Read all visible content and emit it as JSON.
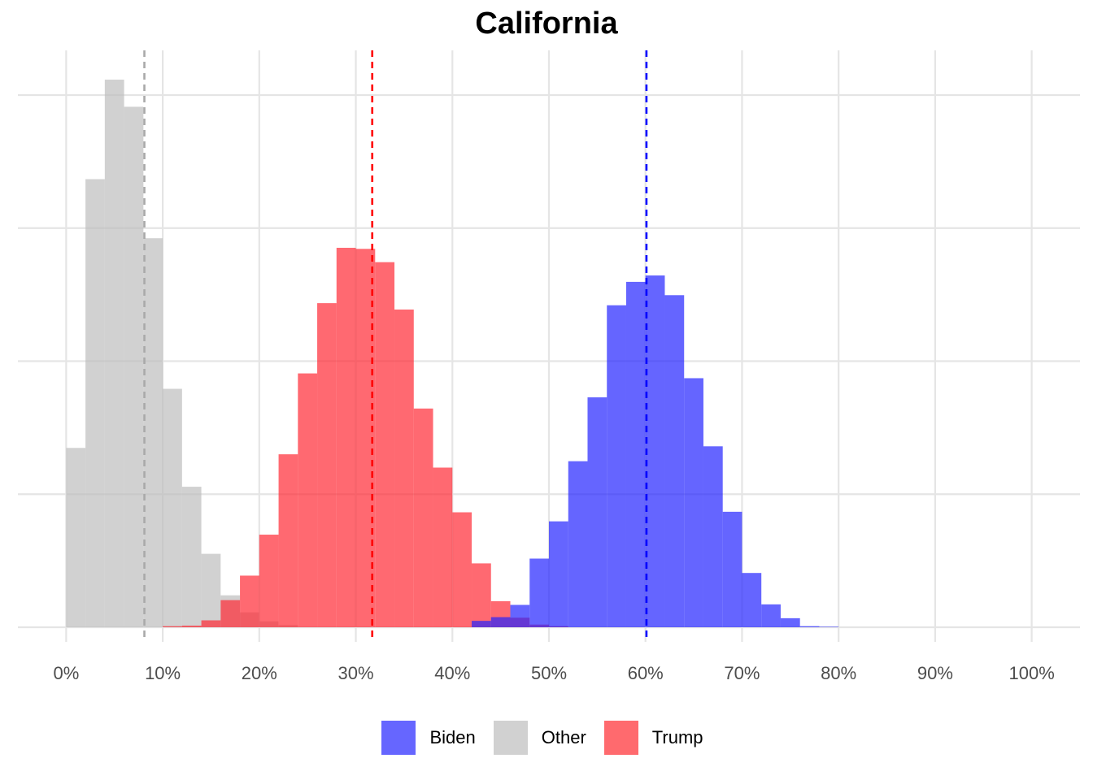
{
  "chart_data": {
    "type": "histogram",
    "title": "California",
    "xlabel": "",
    "ylabel": "",
    "xlim": [
      -0.05,
      1.05
    ],
    "ylim": [
      0,
      1
    ],
    "x_ticks": [
      "0%",
      "10%",
      "20%",
      "30%",
      "40%",
      "50%",
      "60%",
      "70%",
      "80%",
      "90%",
      "100%"
    ],
    "x_tick_values": [
      0,
      0.1,
      0.2,
      0.3,
      0.4,
      0.5,
      0.6,
      0.7,
      0.8,
      0.9,
      1.0
    ],
    "y_gridlines": [
      0,
      0.25,
      0.5,
      0.75,
      1.0
    ],
    "y_tick_labels_shown": false,
    "grid": true,
    "legend_position": "bottom",
    "bin_width": 0.02,
    "series": [
      {
        "name": "Other",
        "color": "#BEBEBE",
        "opacity": 0.7,
        "bins": [
          {
            "x": 0.01,
            "height": 0.337
          },
          {
            "x": 0.03,
            "height": 0.842
          },
          {
            "x": 0.05,
            "height": 1.029
          },
          {
            "x": 0.07,
            "height": 0.978
          },
          {
            "x": 0.09,
            "height": 0.731
          },
          {
            "x": 0.11,
            "height": 0.448
          },
          {
            "x": 0.13,
            "height": 0.264
          },
          {
            "x": 0.15,
            "height": 0.138
          },
          {
            "x": 0.17,
            "height": 0.06
          },
          {
            "x": 0.19,
            "height": 0.028
          },
          {
            "x": 0.21,
            "height": 0.011
          },
          {
            "x": 0.23,
            "height": 0.004
          }
        ],
        "mean": 0.081,
        "mean_line_color": "#A9A9A9"
      },
      {
        "name": "Trump",
        "color": "#FF2A35",
        "opacity": 0.7,
        "bins": [
          {
            "x": 0.11,
            "height": 0.002
          },
          {
            "x": 0.13,
            "height": 0.003
          },
          {
            "x": 0.15,
            "height": 0.013
          },
          {
            "x": 0.17,
            "height": 0.051
          },
          {
            "x": 0.19,
            "height": 0.097
          },
          {
            "x": 0.21,
            "height": 0.174
          },
          {
            "x": 0.23,
            "height": 0.325
          },
          {
            "x": 0.25,
            "height": 0.477
          },
          {
            "x": 0.27,
            "height": 0.609
          },
          {
            "x": 0.29,
            "height": 0.713
          },
          {
            "x": 0.31,
            "height": 0.711
          },
          {
            "x": 0.33,
            "height": 0.686
          },
          {
            "x": 0.35,
            "height": 0.597
          },
          {
            "x": 0.37,
            "height": 0.411
          },
          {
            "x": 0.39,
            "height": 0.3
          },
          {
            "x": 0.41,
            "height": 0.216
          },
          {
            "x": 0.43,
            "height": 0.12
          },
          {
            "x": 0.45,
            "height": 0.049
          },
          {
            "x": 0.47,
            "height": 0.018
          },
          {
            "x": 0.49,
            "height": 0.005
          },
          {
            "x": 0.51,
            "height": 0.002
          }
        ],
        "mean": 0.317,
        "mean_line_color": "#FF0000"
      },
      {
        "name": "Biden",
        "color": "#2323FF",
        "opacity": 0.7,
        "bins": [
          {
            "x": 0.43,
            "height": 0.012
          },
          {
            "x": 0.45,
            "height": 0.019
          },
          {
            "x": 0.47,
            "height": 0.042
          },
          {
            "x": 0.49,
            "height": 0.129
          },
          {
            "x": 0.51,
            "height": 0.199
          },
          {
            "x": 0.53,
            "height": 0.312
          },
          {
            "x": 0.55,
            "height": 0.432
          },
          {
            "x": 0.57,
            "height": 0.605
          },
          {
            "x": 0.59,
            "height": 0.649
          },
          {
            "x": 0.61,
            "height": 0.661
          },
          {
            "x": 0.63,
            "height": 0.624
          },
          {
            "x": 0.65,
            "height": 0.468
          },
          {
            "x": 0.67,
            "height": 0.34
          },
          {
            "x": 0.69,
            "height": 0.217
          },
          {
            "x": 0.71,
            "height": 0.102
          },
          {
            "x": 0.73,
            "height": 0.043
          },
          {
            "x": 0.75,
            "height": 0.017
          },
          {
            "x": 0.77,
            "height": 0.002
          },
          {
            "x": 0.79,
            "height": 0.001
          }
        ],
        "mean": 0.601,
        "mean_line_color": "#0000FF"
      }
    ]
  },
  "legend": {
    "items": [
      {
        "label": "Biden",
        "color": "#6666FF"
      },
      {
        "label": "Other",
        "color": "#D1D1D1"
      },
      {
        "label": "Trump",
        "color": "#FF6A6E"
      }
    ]
  }
}
